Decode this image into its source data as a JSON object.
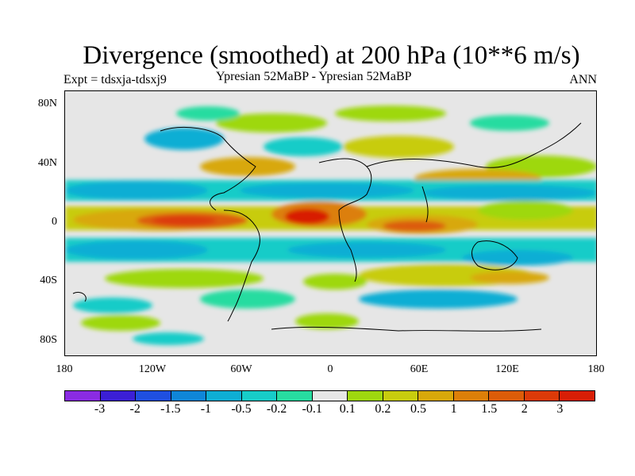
{
  "title": "Divergence (smoothed) at 200 hPa (10**6 m/s)",
  "subtitle_left": "Expt = tdsxja-tdsxj9",
  "subtitle_center": "Ypresian  52MaBP - Ypresian  52MaBP",
  "subtitle_right": "ANN",
  "map": {
    "lat_ticks": [
      "80N",
      "40N",
      "0",
      "40S",
      "80S"
    ],
    "lon_ticks": [
      "180",
      "120W",
      "60W",
      "0",
      "60E",
      "120E",
      "180"
    ],
    "lat_range": [
      -90,
      90
    ],
    "lon_range": [
      -180,
      180
    ]
  },
  "colorbar": {
    "colors": [
      "#8a2be2",
      "#3b1fd6",
      "#1f4fe0",
      "#0f86d8",
      "#0eaed4",
      "#17ccc8",
      "#27dca0",
      "#e6e6e6",
      "#9ed80f",
      "#c8cc0e",
      "#d8a80a",
      "#dc7f08",
      "#dc5c08",
      "#dc3a08",
      "#d81e06"
    ],
    "labels": [
      "-3",
      "-2",
      "-1.5",
      "-1",
      "-0.5",
      "-0.2",
      "-0.1",
      "0.1",
      "0.2",
      "0.5",
      "1",
      "1.5",
      "2",
      "3"
    ]
  }
}
